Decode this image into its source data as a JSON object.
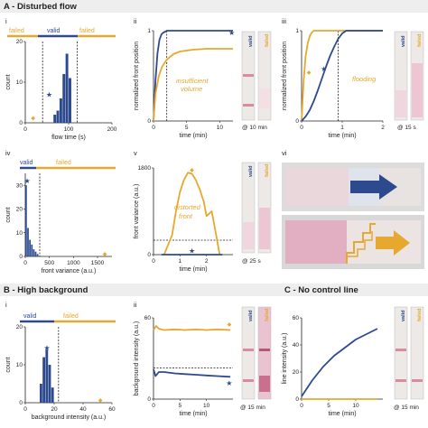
{
  "colors": {
    "valid": "#2e4a8f",
    "failed": "#e6a82e",
    "axis": "#222222",
    "pink": "#d98aa5",
    "strip_bg": "#ece9e6"
  },
  "sections": {
    "a_title": "A - Disturbed flow",
    "b_title": "B - High background",
    "c_title": "C - No control line"
  },
  "panels": {
    "ai": "i",
    "aii": "ii",
    "aiii": "iii",
    "aiv": "iv",
    "av": "v",
    "avi": "vi",
    "bi": "i",
    "bii": "ii"
  },
  "legend": {
    "valid": "valid",
    "failed": "failed"
  },
  "strip_labels": {
    "valid": "valid",
    "failed": "failed"
  },
  "annotations": {
    "insufficient_volume": [
      "insufficient",
      "volume"
    ],
    "flooding": "flooding",
    "distorted_front": [
      "distorted",
      "front"
    ],
    "at_10min": "@ 10 min",
    "at_15s": "@ 15 s",
    "at_25s": "@ 25 s",
    "at_15min_b": "@ 15 min",
    "at_15min_c": "@ 15 min",
    "star": "★",
    "diamond": "◆"
  },
  "chart_data": [
    {
      "id": "A-i",
      "type": "bar",
      "xlabel": "flow time (s)",
      "ylabel": "count",
      "xlim": [
        0,
        200
      ],
      "ylim": [
        0,
        20
      ],
      "xticks": [
        "0",
        "100",
        "200"
      ],
      "yticks": [
        "0",
        "10",
        "20"
      ],
      "bin_edges": [
        65,
        72,
        79,
        86,
        93,
        100,
        107
      ],
      "counts": [
        2,
        3,
        6,
        12,
        17,
        11
      ],
      "thresholds": [
        40,
        120
      ],
      "legend": [
        "failed",
        "valid",
        "failed"
      ],
      "markers": [
        {
          "symbol": "diamond",
          "x": 18,
          "y": 1.5
        },
        {
          "symbol": "star",
          "x": 55,
          "y": 7
        }
      ]
    },
    {
      "id": "A-ii",
      "type": "line",
      "xlabel": "time (min)",
      "ylabel": "normalized front position",
      "xlim": [
        0,
        12
      ],
      "ylim": [
        0,
        1
      ],
      "xticks": [
        "0",
        "5",
        "10"
      ],
      "yticks": [
        "0",
        "1"
      ],
      "threshold_x": 2,
      "series": [
        {
          "color": "valid",
          "x": [
            0,
            0.3,
            0.6,
            0.9,
            1.2,
            1.5,
            1.8,
            2,
            12
          ],
          "y": [
            0,
            0.45,
            0.75,
            0.9,
            0.96,
            0.98,
            0.99,
            1,
            1
          ]
        },
        {
          "color": "failed",
          "x": [
            0,
            0.3,
            0.8,
            1.3,
            2,
            3,
            4,
            6,
            8,
            12
          ],
          "y": [
            0,
            0.3,
            0.5,
            0.6,
            0.68,
            0.74,
            0.77,
            0.79,
            0.8,
            0.8
          ]
        }
      ],
      "markers": [
        {
          "symbol": "star",
          "x": 11.8,
          "y": 0.98
        }
      ]
    },
    {
      "id": "A-iii",
      "type": "line",
      "xlabel": "time (min)",
      "ylabel": "normalized front position",
      "xlim": [
        0,
        2
      ],
      "ylim": [
        0,
        1
      ],
      "xticks": [
        "0",
        "1",
        "2"
      ],
      "yticks": [
        "0",
        "1"
      ],
      "threshold_x": 0.9,
      "series": [
        {
          "color": "failed",
          "x": [
            0,
            0.05,
            0.1,
            0.15,
            0.2,
            0.25,
            0.3,
            2
          ],
          "y": [
            0,
            0.45,
            0.72,
            0.86,
            0.94,
            0.98,
            1,
            1
          ]
        },
        {
          "color": "valid",
          "x": [
            0,
            0.1,
            0.2,
            0.3,
            0.4,
            0.5,
            0.6,
            0.7,
            0.8,
            0.9,
            1.0,
            1.1,
            2
          ],
          "y": [
            0,
            0.05,
            0.12,
            0.22,
            0.34,
            0.47,
            0.6,
            0.72,
            0.82,
            0.91,
            0.97,
            1,
            1
          ]
        }
      ],
      "markers": [
        {
          "symbol": "diamond",
          "x": 0.18,
          "y": 0.55
        },
        {
          "symbol": "star",
          "x": 0.55,
          "y": 0.58
        }
      ]
    },
    {
      "id": "A-iv",
      "type": "bar",
      "xlabel": "front variance (a.u.)",
      "ylabel": "count",
      "xlim": [
        0,
        1800
      ],
      "ylim": [
        0,
        35
      ],
      "xticks": [
        "0",
        "500",
        "1000",
        "1500"
      ],
      "yticks": [
        "0",
        "10",
        "20",
        "30"
      ],
      "bin_edges": [
        0,
        40,
        80,
        120,
        160,
        200,
        240,
        280
      ],
      "counts": [
        30,
        12,
        7,
        5,
        3,
        2,
        1
      ],
      "threshold_x": 300,
      "legend": [
        "valid",
        "failed"
      ],
      "markers": [
        {
          "symbol": "star",
          "x": 40,
          "y": 32
        },
        {
          "symbol": "diamond",
          "x": 1650,
          "y": 1.5
        }
      ]
    },
    {
      "id": "A-v",
      "type": "line",
      "xlabel": "time (min)",
      "ylabel": "front variance (a.u.)",
      "xlim": [
        0,
        3
      ],
      "ylim": [
        0,
        1800
      ],
      "xticks": [
        "0",
        "1",
        "2"
      ],
      "yticks": [
        "0",
        "1800"
      ],
      "threshold_y": 300,
      "series": [
        {
          "color": "failed",
          "x": [
            0.4,
            0.7,
            0.85,
            1.0,
            1.15,
            1.3,
            1.45,
            1.6,
            1.75,
            1.9,
            2.0,
            2.1,
            2.2,
            2.3,
            2.4,
            2.5
          ],
          "y": [
            0,
            400,
            900,
            1300,
            1550,
            1700,
            1680,
            1550,
            1350,
            1100,
            800,
            850,
            900,
            600,
            300,
            0
          ]
        },
        {
          "color": "valid",
          "x": [
            0.3,
            2.6
          ],
          "y": [
            0,
            0
          ]
        }
      ],
      "markers": [
        {
          "symbol": "diamond",
          "x": 1.45,
          "y": 1780
        },
        {
          "symbol": "star",
          "x": 1.45,
          "y": 80
        }
      ]
    },
    {
      "id": "B-i",
      "type": "bar",
      "xlabel": "background intensity (a.u.)",
      "ylabel": "count",
      "xlim": [
        0,
        60
      ],
      "ylim": [
        0,
        20
      ],
      "xticks": [
        "0",
        "20",
        "40",
        "60"
      ],
      "yticks": [
        "0",
        "10",
        "20"
      ],
      "bin_edges": [
        10,
        12,
        14,
        16,
        18,
        20
      ],
      "counts": [
        5,
        12,
        14,
        10,
        4
      ],
      "threshold_x": 23,
      "legend": [
        "valid",
        "failed"
      ],
      "markers": [
        {
          "symbol": "star",
          "x": 15,
          "y": 14.5
        },
        {
          "symbol": "diamond",
          "x": 52,
          "y": 1
        }
      ]
    },
    {
      "id": "B-ii",
      "type": "line",
      "xlabel": "time (min)",
      "ylabel": "background intensity (a.u.)",
      "xlim": [
        0,
        15
      ],
      "ylim": [
        0,
        60
      ],
      "xticks": [
        "0",
        "5",
        "10"
      ],
      "yticks": [
        "0",
        "60"
      ],
      "threshold_y": 23,
      "series": [
        {
          "color": "failed",
          "x": [
            0,
            0.5,
            1,
            2,
            4,
            6,
            8,
            10,
            12,
            14.5
          ],
          "y": [
            51,
            54,
            52,
            51,
            51.5,
            51,
            51.5,
            51,
            51.5,
            51
          ]
        },
        {
          "color": "valid",
          "x": [
            0,
            0.4,
            1,
            2,
            4,
            6,
            8,
            10,
            12,
            14.5
          ],
          "y": [
            22,
            17,
            20,
            20,
            19,
            18.5,
            18,
            17.5,
            17,
            16.5
          ]
        }
      ],
      "markers": [
        {
          "symbol": "diamond",
          "x": 14.3,
          "y": 56
        },
        {
          "symbol": "star",
          "x": 14.3,
          "y": 12
        }
      ]
    },
    {
      "id": "C",
      "type": "line",
      "xlabel": "time (min)",
      "ylabel": "line intensity (a.u.)",
      "xlim": [
        0,
        15
      ],
      "ylim": [
        0,
        60
      ],
      "xticks": [
        "0",
        "5",
        "10"
      ],
      "yticks": [
        "0",
        "20",
        "40",
        "60"
      ],
      "series": [
        {
          "color": "valid",
          "x": [
            0,
            1,
            2,
            3,
            4,
            5,
            6,
            7,
            8,
            9,
            10,
            11,
            12,
            13,
            14
          ],
          "y": [
            2,
            8,
            14,
            19,
            24,
            28,
            32,
            35,
            38,
            41,
            44,
            46,
            48,
            50,
            52
          ]
        },
        {
          "color": "failed",
          "x": [
            0,
            14
          ],
          "y": [
            0,
            0
          ]
        }
      ]
    }
  ]
}
